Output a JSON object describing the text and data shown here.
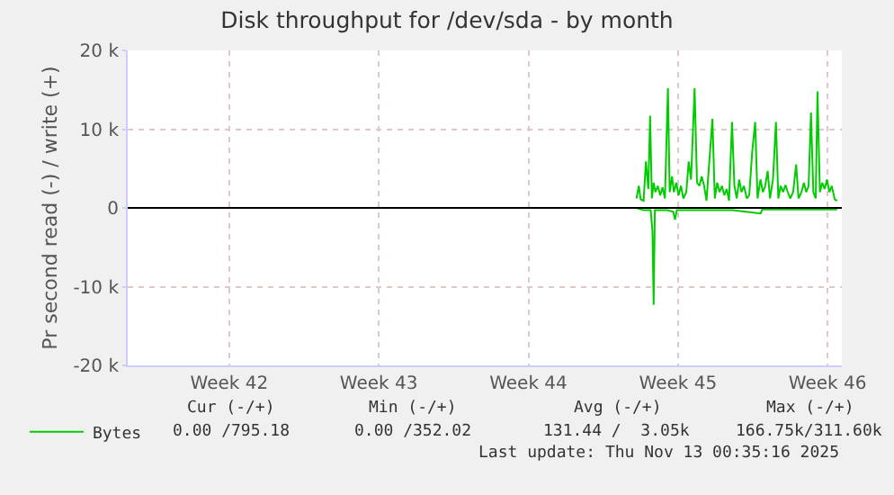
{
  "chart_data": {
    "type": "line",
    "title": "Disk throughput for /dev/sda - by month",
    "ylabel": "Pr second read (-) / write (+)",
    "xlim": [
      "2025-10-11T18:00",
      "2025-11-14T04:00"
    ],
    "xticks": [
      {
        "value": "2025-10-16T12:00",
        "label": "Week 42"
      },
      {
        "value": "2025-10-23T12:00",
        "label": "Week 43"
      },
      {
        "value": "2025-10-30T12:00",
        "label": "Week 44"
      },
      {
        "value": "2025-11-06T12:00",
        "label": "Week 45"
      },
      {
        "value": "2025-11-13T12:00",
        "label": "Week 46"
      }
    ],
    "ylim": [
      -20000,
      20000
    ],
    "yticks": [
      {
        "value": -20000,
        "label": "-20 k"
      },
      {
        "value": -10000,
        "label": "-10 k"
      },
      0,
      {
        "value": 10000,
        "label": "10 k"
      },
      {
        "value": 20000,
        "label": "20 k"
      }
    ],
    "grid": true,
    "legend": "bottom left",
    "marker": "none",
    "line_style": "solid",
    "ref_lines": [
      {
        "axis": "y",
        "value": 0,
        "label": null,
        "color": "#000000"
      }
    ],
    "series": [
      {
        "name": "Bytes",
        "color": "#00cc00",
        "x": [
          "2025-11-04T13:20",
          "2025-11-04T16:00",
          "2025-11-04T18:00",
          "2025-11-04T21:20",
          "2025-11-05T00:00",
          "2025-11-05T02:40",
          "2025-11-05T04:40",
          "2025-11-05T06:40",
          "2025-11-05T08:40",
          "2025-11-05T10:40",
          "2025-11-05T13:20",
          "2025-11-05T16:00",
          "2025-11-05T18:40",
          "2025-11-05T21:20",
          "2025-11-06T00:40",
          "2025-11-06T02:40",
          "2025-11-06T05:20",
          "2025-11-06T07:20",
          "2025-11-06T10:00",
          "2025-11-06T12:40",
          "2025-11-06T15:20",
          "2025-11-06T18:00",
          "2025-11-06T21:20",
          "2025-11-07T00:00",
          "2025-11-07T02:40",
          "2025-11-07T06:40",
          "2025-11-07T09:20",
          "2025-11-07T12:00",
          "2025-11-07T14:40",
          "2025-11-07T17:20",
          "2025-11-07T20:00",
          "2025-11-07T22:40",
          "2025-11-08T02:40",
          "2025-11-08T05:20",
          "2025-11-08T08:00",
          "2025-11-08T10:40",
          "2025-11-08T13:20",
          "2025-11-08T16:00",
          "2025-11-08T18:40",
          "2025-11-08T21:20",
          "2025-11-09T00:40",
          "2025-11-09T03:20",
          "2025-11-09T06:00",
          "2025-11-09T08:40",
          "2025-11-09T11:20",
          "2025-11-09T14:00",
          "2025-11-09T17:20",
          "2025-11-09T20:00",
          "2025-11-09T23:20",
          "2025-11-10T02:40",
          "2025-11-10T05:20",
          "2025-11-10T08:40",
          "2025-11-10T11:20",
          "2025-11-10T14:00",
          "2025-11-10T16:40",
          "2025-11-10T19:20",
          "2025-11-10T22:40",
          "2025-11-11T02:00",
          "2025-11-11T04:40",
          "2025-11-11T07:20",
          "2025-11-11T10:00",
          "2025-11-11T12:40",
          "2025-11-11T15:20",
          "2025-11-11T18:00",
          "2025-11-11T21:20",
          "2025-11-12T00:40",
          "2025-11-12T03:20",
          "2025-11-12T06:40",
          "2025-11-12T09:20",
          "2025-11-12T12:00",
          "2025-11-12T14:40",
          "2025-11-12T17:20",
          "2025-11-12T20:00",
          "2025-11-12T22:40",
          "2025-11-13T00:40",
          "2025-11-13T03:20",
          "2025-11-13T06:00",
          "2025-11-13T08:40",
          "2025-11-13T11:20",
          "2025-11-13T14:00",
          "2025-11-13T16:40",
          "2025-11-13T20:00",
          "2025-11-13T22:40"
        ],
        "values": [
          1200,
          2800,
          1100,
          900,
          5900,
          2400,
          11700,
          1200,
          3200,
          2000,
          2800,
          1600,
          2600,
          1200,
          15200,
          2000,
          4000,
          2000,
          3200,
          1600,
          2800,
          1200,
          2000,
          5900,
          3600,
          15200,
          3200,
          2800,
          4000,
          2800,
          900,
          5100,
          11300,
          1200,
          3200,
          2000,
          2800,
          1600,
          2400,
          900,
          10900,
          2800,
          1200,
          3600,
          2000,
          2800,
          1200,
          1600,
          7100,
          10900,
          1200,
          3600,
          2000,
          2800,
          4700,
          1200,
          3600,
          10900,
          1200,
          2800,
          2000,
          2900,
          2000,
          1200,
          2000,
          5500,
          1200,
          2000,
          3200,
          2000,
          2800,
          12100,
          2000,
          1200,
          14800,
          2000,
          3200,
          2400,
          3600,
          2000,
          2800,
          1100,
          900
        ]
      },
      {
        "color": "#00cc00",
        "x": [
          "2025-11-04T13:20",
          "2025-11-04T21:20",
          "2025-11-05T05:20",
          "2025-11-05T07:20",
          "2025-11-05T08:40",
          "2025-11-05T10:00",
          "2025-11-06T00:00",
          "2025-11-06T06:40",
          "2025-11-06T08:40",
          "2025-11-06T10:40",
          "2025-11-07T16:00",
          "2025-11-09T01:20",
          "2025-11-10T08:40",
          "2025-11-10T10:40",
          "2025-11-11T20:00",
          "2025-11-13T22:40"
        ],
        "values": [
          0,
          -300,
          -300,
          -3000,
          -12300,
          -300,
          -300,
          -500,
          -1500,
          -300,
          -300,
          -300,
          -700,
          -200,
          -200,
          -200
        ]
      }
    ],
    "annotations": [
      "Cur (-/+)",
      "Min (-/+)",
      "Avg (-/+)",
      "Max (-/+)",
      "0.00 /795.18",
      "0.00 /352.02",
      "131.44 /  3.05k",
      "166.75k/311.60k",
      "Last update: Thu Nov 13 00:35:16 2025"
    ]
  }
}
